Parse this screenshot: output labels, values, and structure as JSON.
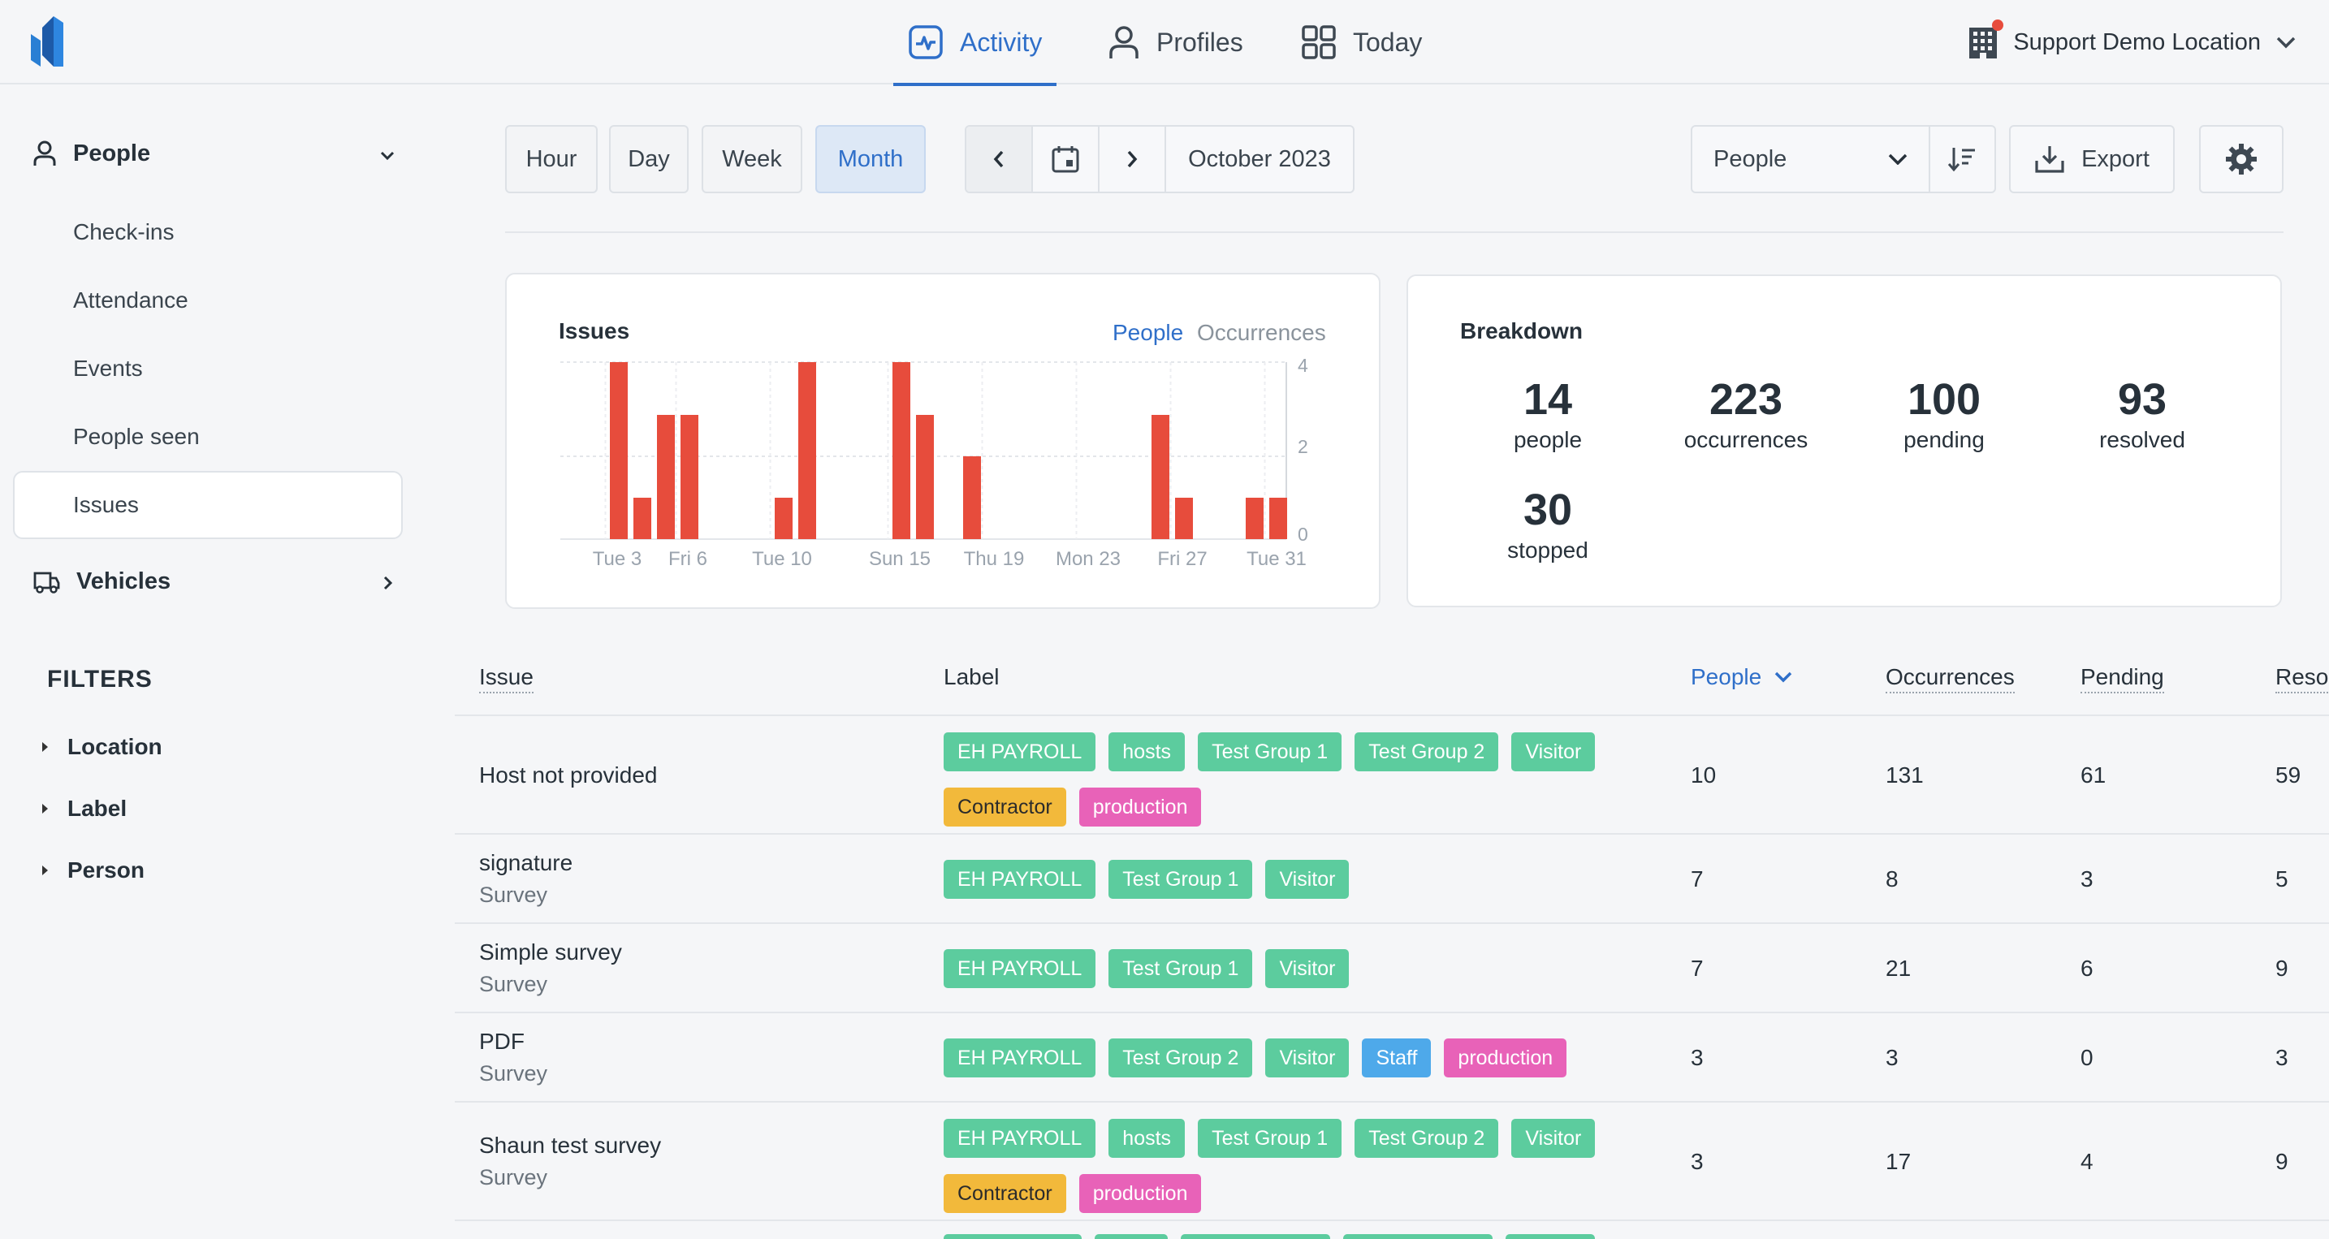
{
  "nav": {
    "tabs": [
      {
        "label": "Activity",
        "icon": "activity-icon",
        "active": true
      },
      {
        "label": "Profiles",
        "icon": "user-icon"
      },
      {
        "label": "Today",
        "icon": "grid-icon"
      }
    ],
    "location": "Support Demo Location"
  },
  "sidebar": {
    "people": {
      "label": "People",
      "items": [
        "Check-ins",
        "Attendance",
        "Events",
        "People seen",
        "Issues"
      ],
      "active": "Issues"
    },
    "vehicles": {
      "label": "Vehicles"
    },
    "filters": {
      "title": "FILTERS",
      "items": [
        "Location",
        "Label",
        "Person"
      ]
    }
  },
  "toolbar": {
    "ranges": [
      "Hour",
      "Day",
      "Week",
      "Month"
    ],
    "active_range": "Month",
    "period": "October 2023",
    "group_by": "People",
    "export_label": "Export"
  },
  "issues_card": {
    "title": "Issues",
    "toggle_people": "People",
    "toggle_occurrences": "Occurrences"
  },
  "chart_data": {
    "type": "bar",
    "x": [
      1,
      2,
      3,
      4,
      5,
      6,
      7,
      8,
      9,
      10,
      11,
      12,
      13,
      14,
      15,
      16,
      17,
      18,
      19,
      20,
      21,
      22,
      23,
      24,
      25,
      26,
      27,
      28,
      29,
      30,
      31
    ],
    "values": [
      0,
      0,
      4,
      1,
      3,
      3,
      0,
      0,
      0,
      1,
      4,
      0,
      0,
      0,
      4,
      3,
      0,
      2,
      0,
      0,
      0,
      0,
      0,
      0,
      0,
      3,
      1,
      0,
      0,
      1,
      1
    ],
    "tick_labels": [
      "Tue 3",
      "Fri 6",
      "Tue 10",
      "Sun 15",
      "Thu 19",
      "Mon 23",
      "Fri 27",
      "Tue 31"
    ],
    "tick_days": [
      3,
      6,
      10,
      15,
      19,
      23,
      27,
      31
    ],
    "y_ticks": [
      0,
      2,
      4
    ],
    "ylim": [
      0,
      4
    ],
    "bar_color": "#e74c3c",
    "grid": true
  },
  "breakdown": {
    "title": "Breakdown",
    "stats": [
      {
        "value": "14",
        "label": "people"
      },
      {
        "value": "223",
        "label": "occurrences"
      },
      {
        "value": "100",
        "label": "pending"
      },
      {
        "value": "93",
        "label": "resolved"
      },
      {
        "value": "30",
        "label": "stopped"
      }
    ]
  },
  "table": {
    "headers": {
      "issue": "Issue",
      "label": "Label",
      "people": "People",
      "occurrences": "Occurrences",
      "pending": "Pending",
      "resolved": "Resol"
    },
    "rows": [
      {
        "issue": "Host not provided",
        "sub": "",
        "tags": [
          "EH PAYROLL",
          "hosts",
          "Test Group 1",
          "Test Group 2",
          "Visitor",
          "Contractor",
          "production"
        ],
        "people": "10",
        "occurrences": "131",
        "pending": "61",
        "resolved": "59"
      },
      {
        "issue": "signature",
        "sub": "Survey",
        "tags": [
          "EH PAYROLL",
          "Test Group 1",
          "Visitor"
        ],
        "people": "7",
        "occurrences": "8",
        "pending": "3",
        "resolved": "5"
      },
      {
        "issue": "Simple survey",
        "sub": "Survey",
        "tags": [
          "EH PAYROLL",
          "Test Group 1",
          "Visitor"
        ],
        "people": "7",
        "occurrences": "21",
        "pending": "6",
        "resolved": "9"
      },
      {
        "issue": "PDF",
        "sub": "Survey",
        "tags": [
          "EH PAYROLL",
          "Test Group 2",
          "Visitor",
          "Staff",
          "production"
        ],
        "people": "3",
        "occurrences": "3",
        "pending": "0",
        "resolved": "3"
      },
      {
        "issue": "Shaun test survey",
        "sub": "Survey",
        "tags": [
          "EH PAYROLL",
          "hosts",
          "Test Group 1",
          "Test Group 2",
          "Visitor",
          "Contractor",
          "production"
        ],
        "people": "3",
        "occurrences": "17",
        "pending": "4",
        "resolved": "9"
      }
    ]
  },
  "tag_colors": {
    "default": "#5ccc9e",
    "Contractor": "#f2b93b",
    "production": "#e862b8",
    "Staff": "#4ea9ea"
  },
  "colors": {
    "accent": "#2f6fc9",
    "bar": "#e74c3c"
  }
}
